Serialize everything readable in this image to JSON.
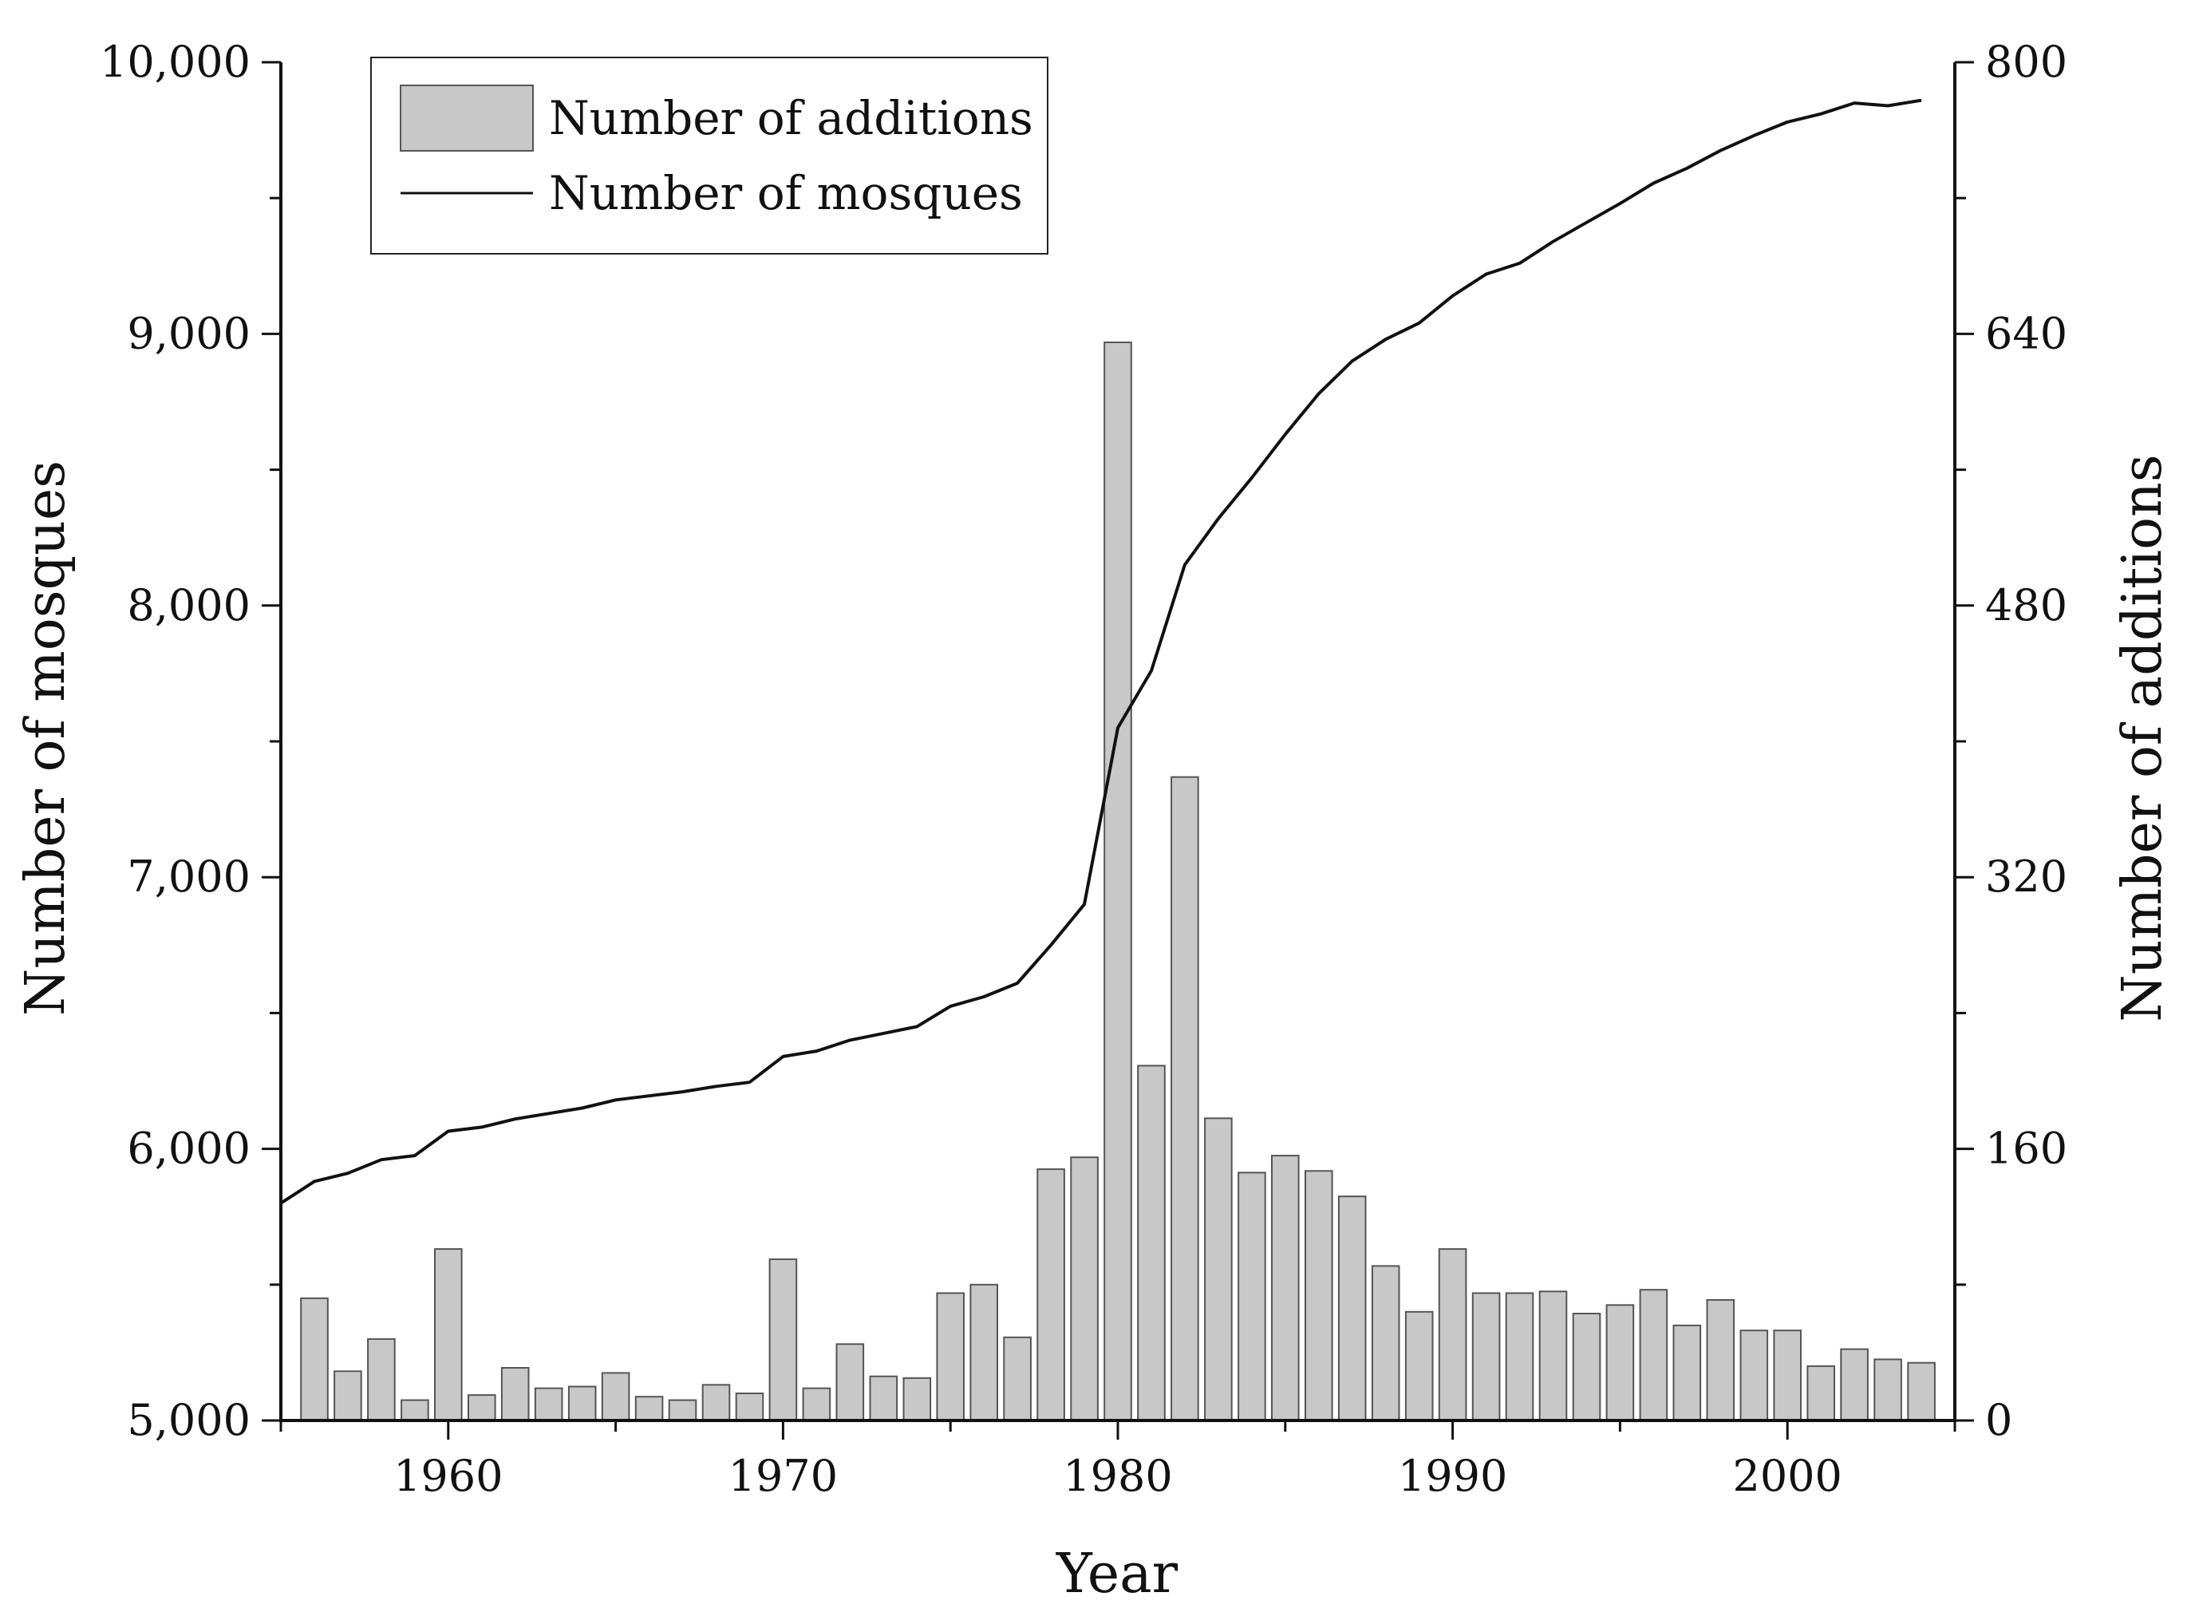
{
  "chart_data": {
    "type": "bar+line",
    "title": "",
    "xlabel": "Year",
    "ylabel_left": "Number of mosques",
    "ylabel_right": "Number of additions",
    "xlim": [
      1955,
      2005
    ],
    "ylim_left": [
      5000,
      10000
    ],
    "ylim_right": [
      0,
      800
    ],
    "x_ticks": [
      1960,
      1970,
      1980,
      1990,
      2000
    ],
    "x_tick_labels": [
      "1960",
      "1970",
      "1980",
      "1990",
      "2000"
    ],
    "y_left_ticks": [
      5000,
      6000,
      7000,
      8000,
      9000,
      10000
    ],
    "y_left_tick_labels": [
      "5,000",
      "6,000",
      "7,000",
      "8,000",
      "9,000",
      "10,000"
    ],
    "y_right_ticks": [
      0,
      160,
      320,
      480,
      640,
      800
    ],
    "y_right_tick_labels": [
      "0",
      "160",
      "320",
      "480",
      "640",
      "800"
    ],
    "grid": false,
    "legend_position": "top-left",
    "legend": [
      {
        "label": "Number of additions",
        "kind": "bar"
      },
      {
        "label": "Number of mosques",
        "kind": "line"
      }
    ],
    "series": [
      {
        "name": "Number of additions",
        "type": "bar",
        "axis": "right",
        "color": "#c8c8c8",
        "edge_color": "#555555",
        "x": [
          1956,
          1957,
          1958,
          1959,
          1960,
          1961,
          1962,
          1963,
          1964,
          1965,
          1966,
          1967,
          1968,
          1969,
          1970,
          1971,
          1972,
          1973,
          1974,
          1975,
          1976,
          1977,
          1978,
          1979,
          1980,
          1981,
          1982,
          1983,
          1984,
          1985,
          1986,
          1987,
          1988,
          1989,
          1990,
          1991,
          1992,
          1993,
          1994,
          1995,
          1996,
          1997,
          1998,
          1999,
          2000,
          2001,
          2002,
          2003,
          2004
        ],
        "values": [
          72,
          29,
          48,
          12,
          101,
          15,
          31,
          19,
          20,
          28,
          14,
          12,
          21,
          16,
          95,
          19,
          45,
          26,
          25,
          75,
          80,
          49,
          148,
          155,
          635,
          209,
          379,
          178,
          146,
          156,
          147,
          132,
          91,
          64,
          101,
          75,
          75,
          76,
          63,
          68,
          77,
          56,
          71,
          53,
          53,
          32,
          42,
          36,
          34
        ]
      },
      {
        "name": "Number of mosques",
        "type": "line",
        "axis": "left",
        "color": "#111111",
        "x": [
          1955,
          1956,
          1957,
          1958,
          1959,
          1960,
          1961,
          1962,
          1963,
          1964,
          1965,
          1966,
          1967,
          1968,
          1969,
          1970,
          1971,
          1972,
          1973,
          1974,
          1975,
          1976,
          1977,
          1978,
          1979,
          1980,
          1981,
          1982,
          1983,
          1984,
          1985,
          1986,
          1987,
          1988,
          1989,
          1990,
          1991,
          1992,
          1993,
          1994,
          1995,
          1996,
          1997,
          1998,
          1999,
          2000,
          2001,
          2002,
          2003,
          2004
        ],
        "values": [
          5800,
          5880,
          5910,
          5960,
          5975,
          6065,
          6080,
          6110,
          6130,
          6150,
          6180,
          6195,
          6210,
          6230,
          6245,
          6340,
          6360,
          6400,
          6425,
          6450,
          6525,
          6560,
          6610,
          6750,
          6900,
          7550,
          7760,
          8150,
          8320,
          8470,
          8630,
          8780,
          8900,
          8980,
          9040,
          9140,
          9220,
          9260,
          9340,
          9410,
          9480,
          9555,
          9610,
          9675,
          9730,
          9780,
          9810,
          9850,
          9840,
          9860
        ]
      }
    ]
  }
}
